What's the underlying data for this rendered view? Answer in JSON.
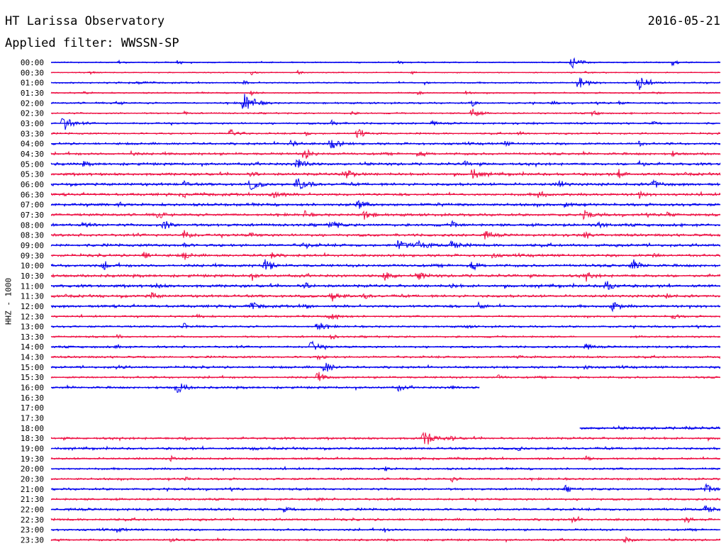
{
  "header": {
    "station": "HT Larissa Observatory",
    "date": "2016-05-21",
    "filter": "Applied filter: WWSSN-SP"
  },
  "channel_label": "HHZ - 1000",
  "colors": {
    "even_rows": "#0000ee",
    "odd_rows": "#ee1144"
  },
  "chart_data": {
    "type": "line",
    "title": "HT Larissa Observatory",
    "subtitle": "Applied filter: WWSSN-SP",
    "ylabel": "HHZ - 1000",
    "xlabel": "",
    "rows": [
      {
        "time": "00:00",
        "amp": 0.7,
        "start": 0,
        "end": 1,
        "events": [
          [
            0.1,
            2.5,
            0.6
          ],
          [
            0.19,
            4,
            0.4
          ],
          [
            0.52,
            2.6,
            0.5
          ],
          [
            0.78,
            9,
            0.9
          ],
          [
            0.93,
            6,
            0.4
          ]
        ]
      },
      {
        "time": "00:30",
        "amp": 0.6,
        "start": 0,
        "end": 1,
        "events": [
          [
            0.06,
            2.2,
            0.5
          ],
          [
            0.3,
            3,
            0.4
          ],
          [
            0.37,
            2.5,
            0.5
          ],
          [
            0.54,
            2.2,
            0.5
          ],
          [
            0.8,
            3,
            0.4
          ]
        ]
      },
      {
        "time": "01:00",
        "amp": 0.9,
        "start": 0,
        "end": 1,
        "events": [
          [
            0.13,
            2.5,
            0.6
          ],
          [
            0.29,
            2.2,
            0.5
          ],
          [
            0.79,
            9,
            0.9
          ],
          [
            0.88,
            10,
            1
          ],
          [
            0.56,
            2.5,
            0.4
          ]
        ]
      },
      {
        "time": "01:30",
        "amp": 0.8,
        "start": 0,
        "end": 1,
        "events": [
          [
            0.05,
            2.5,
            0.4
          ],
          [
            0.3,
            3,
            0.5
          ],
          [
            0.55,
            2.6,
            0.4
          ],
          [
            0.62,
            2.5,
            0.4
          ],
          [
            0.9,
            2.5,
            0.5
          ]
        ]
      },
      {
        "time": "02:00",
        "amp": 1.0,
        "start": 0,
        "end": 1,
        "events": [
          [
            0.29,
            14,
            1.2
          ],
          [
            0.1,
            2.5,
            0.6
          ],
          [
            0.63,
            4,
            0.5
          ],
          [
            0.75,
            3,
            0.4
          ],
          [
            0.85,
            2.5,
            0.4
          ]
        ]
      },
      {
        "time": "02:30",
        "amp": 0.9,
        "start": 0,
        "end": 1,
        "events": [
          [
            0.63,
            6,
            0.8
          ],
          [
            0.81,
            4,
            0.6
          ],
          [
            0.45,
            2.6,
            0.4
          ],
          [
            0.2,
            2.5,
            0.4
          ]
        ]
      },
      {
        "time": "03:00",
        "amp": 1.1,
        "start": 0,
        "end": 1,
        "events": [
          [
            0.02,
            10,
            1
          ],
          [
            0.42,
            4,
            0.6
          ],
          [
            0.57,
            3,
            0.5
          ],
          [
            0.9,
            2.5,
            0.4
          ]
        ]
      },
      {
        "time": "03:30",
        "amp": 1.0,
        "start": 0,
        "end": 1,
        "events": [
          [
            0.27,
            6,
            0.8
          ],
          [
            0.46,
            7,
            0.9
          ],
          [
            0.38,
            3,
            0.5
          ],
          [
            0.7,
            2.5,
            0.5
          ]
        ]
      },
      {
        "time": "04:00",
        "amp": 1.3,
        "start": 0,
        "end": 1,
        "events": [
          [
            0.42,
            8,
            0.9
          ],
          [
            0.36,
            5,
            0.6
          ],
          [
            0.68,
            3,
            0.5
          ],
          [
            0.88,
            3,
            0.4
          ]
        ]
      },
      {
        "time": "04:30",
        "amp": 1.4,
        "start": 0,
        "end": 1,
        "events": [
          [
            0.38,
            7,
            0.8
          ],
          [
            0.12,
            3,
            0.5
          ],
          [
            0.55,
            3,
            0.6
          ],
          [
            0.93,
            3,
            0.5
          ]
        ]
      },
      {
        "time": "05:00",
        "amp": 1.5,
        "start": 0,
        "end": 1,
        "events": [
          [
            0.37,
            8,
            0.9
          ],
          [
            0.05,
            3,
            0.5
          ],
          [
            0.62,
            3,
            0.6
          ],
          [
            0.88,
            4,
            0.6
          ]
        ]
      },
      {
        "time": "05:30",
        "amp": 1.5,
        "start": 0,
        "end": 1,
        "events": [
          [
            0.44,
            7,
            1
          ],
          [
            0.63,
            7,
            1
          ],
          [
            0.85,
            5,
            0.7
          ],
          [
            0.3,
            4,
            0.6
          ]
        ]
      },
      {
        "time": "06:00",
        "amp": 1.6,
        "start": 0,
        "end": 1,
        "events": [
          [
            0.3,
            7,
            0.9
          ],
          [
            0.37,
            9,
            1
          ],
          [
            0.2,
            3,
            0.5
          ],
          [
            0.76,
            5,
            0.7
          ],
          [
            0.9,
            6,
            0.8
          ]
        ]
      },
      {
        "time": "06:30",
        "amp": 1.5,
        "start": 0,
        "end": 1,
        "events": [
          [
            0.33,
            7,
            0.9
          ],
          [
            0.73,
            5,
            0.8
          ],
          [
            0.2,
            3,
            0.5
          ],
          [
            0.88,
            4,
            0.6
          ]
        ]
      },
      {
        "time": "07:00",
        "amp": 1.6,
        "start": 0,
        "end": 1,
        "events": [
          [
            0.46,
            5,
            0.8
          ],
          [
            0.77,
            4,
            0.6
          ],
          [
            0.1,
            3,
            0.5
          ],
          [
            0.58,
            3,
            0.5
          ]
        ]
      },
      {
        "time": "07:30",
        "amp": 1.5,
        "start": 0,
        "end": 1,
        "events": [
          [
            0.16,
            5,
            0.7
          ],
          [
            0.38,
            4,
            0.6
          ],
          [
            0.47,
            6,
            0.9
          ],
          [
            0.8,
            6,
            0.9
          ],
          [
            0.92,
            4,
            0.6
          ]
        ]
      },
      {
        "time": "08:00",
        "amp": 1.6,
        "start": 0,
        "end": 1,
        "events": [
          [
            0.05,
            5,
            0.7
          ],
          [
            0.17,
            6,
            0.8
          ],
          [
            0.42,
            6,
            0.8
          ],
          [
            0.6,
            4,
            0.6
          ],
          [
            0.82,
            4,
            0.6
          ]
        ]
      },
      {
        "time": "08:30",
        "amp": 1.5,
        "start": 0,
        "end": 1,
        "events": [
          [
            0.2,
            6,
            0.8
          ],
          [
            0.3,
            3,
            0.6
          ],
          [
            0.65,
            5,
            0.8
          ],
          [
            0.8,
            4,
            0.6
          ]
        ]
      },
      {
        "time": "09:00",
        "amp": 1.6,
        "start": 0,
        "end": 1,
        "events": [
          [
            0.52,
            7,
            1
          ],
          [
            0.55,
            7,
            1
          ],
          [
            0.6,
            6,
            0.9
          ],
          [
            0.2,
            3,
            0.5
          ],
          [
            0.38,
            4,
            0.7
          ]
        ]
      },
      {
        "time": "09:30",
        "amp": 1.5,
        "start": 0,
        "end": 1,
        "events": [
          [
            0.14,
            5,
            0.7
          ],
          [
            0.2,
            5,
            0.7
          ],
          [
            0.33,
            4,
            0.6
          ],
          [
            0.66,
            3,
            0.6
          ],
          [
            0.9,
            3,
            0.6
          ]
        ]
      },
      {
        "time": "10:00",
        "amp": 1.6,
        "start": 0,
        "end": 1,
        "events": [
          [
            0.08,
            5,
            0.7
          ],
          [
            0.32,
            8,
            0.9
          ],
          [
            0.63,
            5,
            0.7
          ],
          [
            0.87,
            6,
            0.9
          ]
        ]
      },
      {
        "time": "10:30",
        "amp": 1.6,
        "start": 0,
        "end": 1,
        "events": [
          [
            0.5,
            6,
            0.8
          ],
          [
            0.55,
            5,
            0.8
          ],
          [
            0.8,
            5,
            0.8
          ],
          [
            0.3,
            4,
            0.6
          ]
        ]
      },
      {
        "time": "11:00",
        "amp": 1.6,
        "start": 0,
        "end": 1,
        "events": [
          [
            0.38,
            4,
            0.7
          ],
          [
            0.16,
            3,
            0.6
          ],
          [
            0.83,
            6,
            0.9
          ],
          [
            0.6,
            3,
            0.5
          ]
        ]
      },
      {
        "time": "11:30",
        "amp": 1.5,
        "start": 0,
        "end": 1,
        "events": [
          [
            0.15,
            5,
            0.7
          ],
          [
            0.42,
            6,
            0.9
          ],
          [
            0.47,
            3,
            0.6
          ],
          [
            0.92,
            3,
            0.5
          ]
        ]
      },
      {
        "time": "12:00",
        "amp": 1.5,
        "start": 0,
        "end": 1,
        "events": [
          [
            0.3,
            5,
            0.8
          ],
          [
            0.38,
            3,
            0.6
          ],
          [
            0.64,
            4,
            0.6
          ],
          [
            0.84,
            6,
            0.9
          ]
        ]
      },
      {
        "time": "12:30",
        "amp": 1.1,
        "start": 0,
        "end": 1,
        "events": [
          [
            0.42,
            6,
            0.9
          ],
          [
            0.22,
            3,
            0.5
          ],
          [
            0.93,
            4,
            0.6
          ]
        ]
      },
      {
        "time": "13:00",
        "amp": 1.1,
        "start": 0,
        "end": 1,
        "events": [
          [
            0.2,
            4,
            0.7
          ],
          [
            0.4,
            6,
            0.9
          ],
          [
            0.62,
            3,
            0.5
          ]
        ]
      },
      {
        "time": "13:30",
        "amp": 1.1,
        "start": 0,
        "end": 1,
        "events": [
          [
            0.42,
            3,
            0.6
          ],
          [
            0.1,
            3,
            0.5
          ]
        ],
        "gaps": [
          [
            0.785,
            0.865
          ]
        ]
      },
      {
        "time": "14:00",
        "amp": 1.2,
        "start": 0,
        "end": 1,
        "events": [
          [
            0.39,
            7,
            0.9
          ],
          [
            0.1,
            3,
            0.5
          ],
          [
            0.8,
            4,
            0.6
          ]
        ]
      },
      {
        "time": "14:30",
        "amp": 1.2,
        "start": 0,
        "end": 1,
        "events": [
          [
            0.4,
            3,
            0.6
          ],
          [
            0.7,
            3,
            0.5
          ]
        ]
      },
      {
        "time": "15:00",
        "amp": 1.3,
        "start": 0,
        "end": 1,
        "events": [
          [
            0.41,
            8,
            0.9
          ],
          [
            0.1,
            3,
            0.6
          ],
          [
            0.8,
            3,
            0.6
          ]
        ]
      },
      {
        "time": "15:30",
        "amp": 1.2,
        "start": 0,
        "end": 1,
        "events": [
          [
            0.4,
            6,
            0.8
          ],
          [
            0.67,
            3,
            0.5
          ]
        ]
      },
      {
        "time": "16:00",
        "amp": 1.3,
        "start": 0,
        "end": 0.64,
        "events": [
          [
            0.19,
            8,
            0.9
          ],
          [
            0.52,
            4,
            0.6
          ],
          [
            0.6,
            3,
            0.5
          ]
        ]
      },
      {
        "time": "16:30",
        "amp": 0,
        "start": 0,
        "end": 0,
        "events": []
      },
      {
        "time": "17:00",
        "amp": 0,
        "start": 0,
        "end": 0,
        "events": []
      },
      {
        "time": "17:30",
        "amp": 0,
        "start": 0,
        "end": 0,
        "events": []
      },
      {
        "time": "18:00",
        "amp": 1.5,
        "start": 0.79,
        "end": 1,
        "events": [
          [
            0.95,
            3,
            0.5
          ]
        ]
      },
      {
        "time": "18:30",
        "amp": 1.3,
        "start": 0,
        "end": 1,
        "events": [
          [
            0.56,
            10,
            1.1
          ],
          [
            0.6,
            3,
            0.6
          ],
          [
            0.2,
            3,
            0.5
          ]
        ]
      },
      {
        "time": "19:00",
        "amp": 1.3,
        "start": 0,
        "end": 1,
        "events": [
          [
            0.3,
            3,
            0.5
          ],
          [
            0.7,
            3,
            0.5
          ]
        ]
      },
      {
        "time": "19:30",
        "amp": 1.2,
        "start": 0,
        "end": 1,
        "events": [
          [
            0.18,
            3,
            0.5
          ],
          [
            0.8,
            3,
            0.5
          ]
        ]
      },
      {
        "time": "20:00",
        "amp": 1.2,
        "start": 0,
        "end": 1,
        "events": [
          [
            0.5,
            3,
            0.5
          ]
        ]
      },
      {
        "time": "20:30",
        "amp": 1.2,
        "start": 0,
        "end": 1,
        "events": [
          [
            0.2,
            3,
            0.5
          ],
          [
            0.6,
            3,
            0.5
          ]
        ]
      },
      {
        "time": "21:00",
        "amp": 1.3,
        "start": 0,
        "end": 1,
        "events": [
          [
            0.77,
            4,
            0.6
          ],
          [
            0.98,
            6,
            0.8
          ]
        ]
      },
      {
        "time": "21:30",
        "amp": 1.2,
        "start": 0,
        "end": 1,
        "events": [
          [
            0.4,
            3,
            0.5
          ]
        ]
      },
      {
        "time": "22:00",
        "amp": 1.4,
        "start": 0,
        "end": 1,
        "events": [
          [
            0.35,
            3,
            0.6
          ],
          [
            0.98,
            6,
            0.8
          ]
        ]
      },
      {
        "time": "22:30",
        "amp": 1.3,
        "start": 0,
        "end": 1,
        "events": [
          [
            0.78,
            4,
            0.6
          ],
          [
            0.95,
            4,
            0.6
          ]
        ]
      },
      {
        "time": "23:00",
        "amp": 1.2,
        "start": 0,
        "end": 1,
        "events": [
          [
            0.1,
            4,
            0.6
          ],
          [
            0.5,
            3,
            0.5
          ]
        ]
      },
      {
        "time": "23:30",
        "amp": 1.1,
        "start": 0,
        "end": 1,
        "events": [
          [
            0.18,
            3,
            0.5
          ],
          [
            0.86,
            4,
            0.7
          ]
        ]
      }
    ]
  }
}
